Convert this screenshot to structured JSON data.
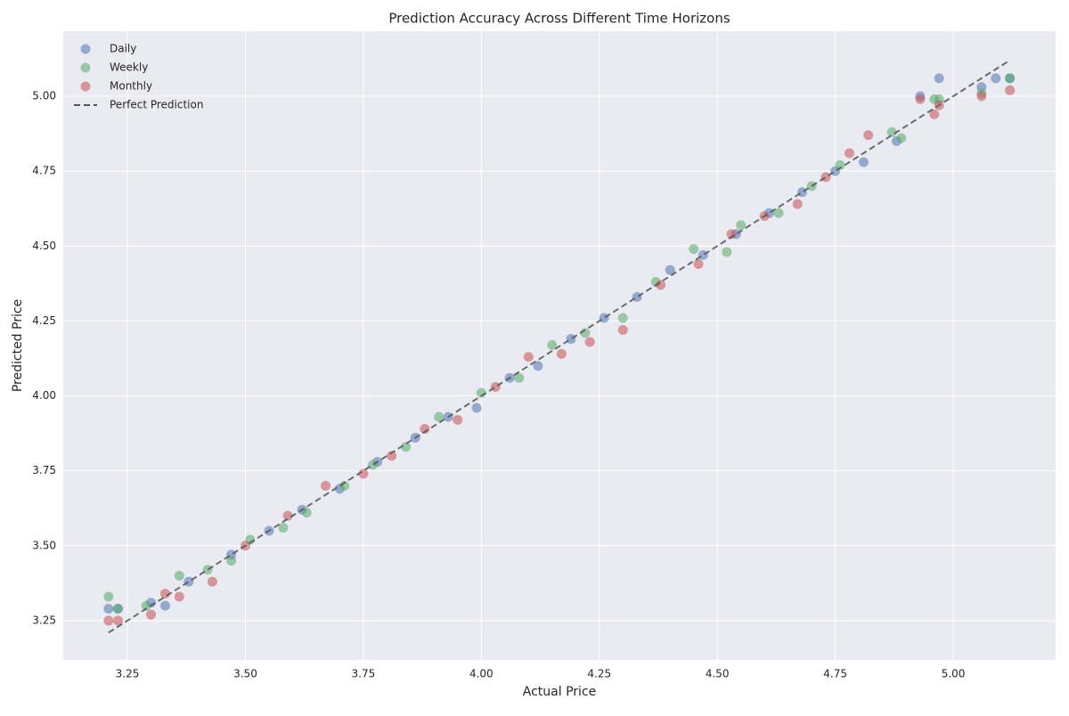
{
  "chart_data": {
    "type": "scatter",
    "title": "Prediction Accuracy Across Different Time Horizons",
    "x_label": "Actual Price",
    "y_label": "Predicted Price",
    "xlim": [
      3.114,
      5.217
    ],
    "ylim": [
      3.119,
      5.217
    ],
    "xticks": [
      3.25,
      {
        "value": 3.5,
        "label": "3.50"
      },
      3.75,
      {
        "value": 4,
        "label": "4.00"
      },
      4.25,
      {
        "value": 4.5,
        "label": "4.50"
      },
      4.75,
      {
        "value": 5,
        "label": "5.00"
      }
    ],
    "yticks": [
      3.25,
      {
        "value": 3.5,
        "label": "3.50"
      },
      3.75,
      {
        "value": 4,
        "label": "4.00"
      },
      4.25,
      {
        "value": 4.5,
        "label": "4.50"
      },
      4.75,
      {
        "value": 5,
        "label": "5.00"
      }
    ],
    "grid": true,
    "legend": "upper-left",
    "series": [
      {
        "name": "Daily",
        "color": "#4c72b0",
        "x": [
          3.21,
          3.23,
          3.3,
          3.33,
          3.38,
          3.47,
          3.55,
          3.62,
          3.7,
          3.78,
          3.86,
          3.93,
          3.99,
          4.06,
          4.12,
          4.19,
          4.26,
          4.33,
          4.4,
          4.47,
          4.54,
          4.61,
          4.68,
          4.75,
          4.81,
          4.88,
          4.93,
          4.97,
          5.06,
          5.09,
          5.12
        ],
        "values": [
          3.29,
          3.29,
          3.31,
          3.3,
          3.38,
          3.47,
          3.55,
          3.62,
          3.69,
          3.78,
          3.86,
          3.93,
          3.96,
          4.06,
          4.1,
          4.19,
          4.26,
          4.33,
          4.42,
          4.47,
          4.54,
          4.61,
          4.68,
          4.75,
          4.78,
          4.85,
          5.0,
          5.06,
          5.03,
          5.06,
          5.06
        ]
      },
      {
        "name": "Weekly",
        "color": "#55a868",
        "x": [
          3.21,
          3.23,
          3.29,
          3.36,
          3.42,
          3.47,
          3.51,
          3.58,
          3.63,
          3.71,
          3.77,
          3.84,
          3.91,
          4.0,
          4.08,
          4.15,
          4.22,
          4.3,
          4.37,
          4.45,
          4.52,
          4.55,
          4.63,
          4.7,
          4.76,
          4.87,
          4.89,
          4.96,
          4.97,
          5.06,
          5.12
        ],
        "values": [
          3.33,
          3.29,
          3.3,
          3.4,
          3.42,
          3.45,
          3.52,
          3.56,
          3.61,
          3.7,
          3.77,
          3.83,
          3.93,
          4.01,
          4.06,
          4.17,
          4.21,
          4.26,
          4.38,
          4.49,
          4.48,
          4.57,
          4.61,
          4.7,
          4.77,
          4.88,
          4.86,
          4.99,
          4.99,
          5.01,
          5.06
        ]
      },
      {
        "name": "Monthly",
        "color": "#c44e52",
        "x": [
          3.21,
          3.23,
          3.3,
          3.33,
          3.36,
          3.43,
          3.5,
          3.59,
          3.67,
          3.75,
          3.81,
          3.88,
          3.95,
          4.03,
          4.1,
          4.17,
          4.23,
          4.3,
          4.38,
          4.46,
          4.53,
          4.6,
          4.67,
          4.73,
          4.78,
          4.82,
          4.93,
          4.96,
          4.97,
          5.06,
          5.12
        ],
        "values": [
          3.25,
          3.25,
          3.27,
          3.34,
          3.33,
          3.38,
          3.5,
          3.6,
          3.7,
          3.74,
          3.8,
          3.89,
          3.92,
          4.03,
          4.13,
          4.14,
          4.18,
          4.22,
          4.37,
          4.44,
          4.54,
          4.6,
          4.64,
          4.73,
          4.81,
          4.87,
          4.99,
          4.94,
          4.97,
          5.0,
          5.02
        ]
      },
      {
        "name": "Perfect Prediction",
        "type": "line",
        "color": "#555555",
        "x": [
          3.21,
          5.12
        ],
        "values": [
          3.21,
          5.12
        ]
      }
    ]
  }
}
